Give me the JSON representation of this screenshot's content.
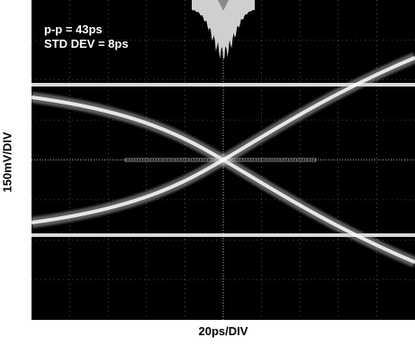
{
  "chart_data": {
    "type": "eye-diagram",
    "ylabel": "150mV/DIV",
    "xlabel": "20ps/DIV",
    "annotations": [
      "p-p = 43ps",
      "STD DEV = 8ps"
    ],
    "grid": true,
    "divisions": {
      "x": 10,
      "y": 8
    },
    "colors": {
      "background": "#000000",
      "trace": "#ffffff",
      "grid": "#ffffff",
      "histogram": "#cfcfcf",
      "marker": "#8a8a8a"
    }
  }
}
